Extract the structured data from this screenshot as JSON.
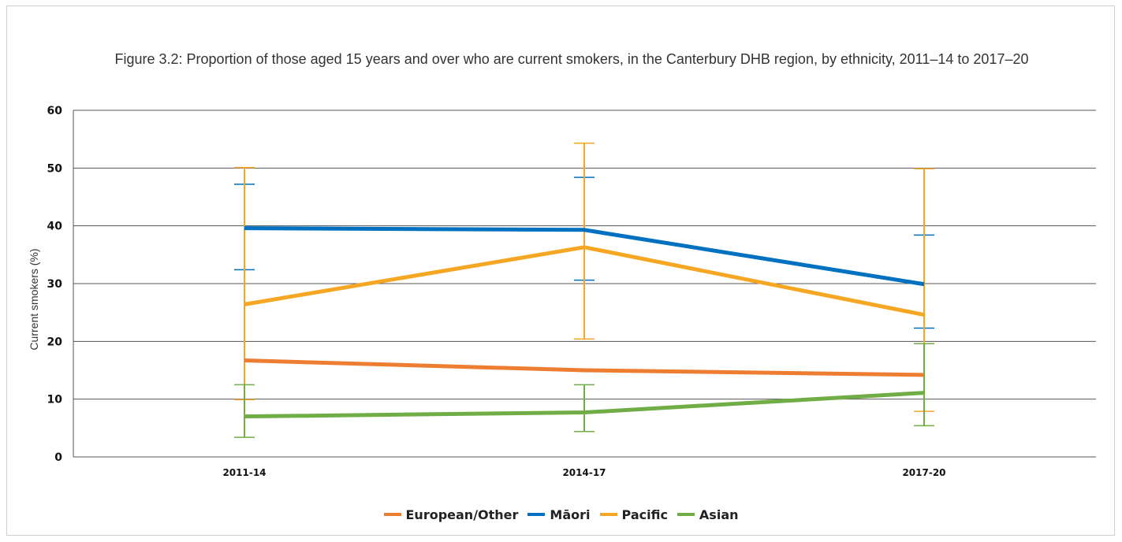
{
  "chart_data": {
    "type": "line",
    "title": "Figure 3.2: Proportion of those aged 15 years and over who are current smokers, in the Canterbury DHB region, by ethnicity, 2011–14 to 2017–20",
    "xlabel": "",
    "ylabel": "Current smokers (%)",
    "ylim": [
      0,
      60
    ],
    "yticks": [
      0,
      10,
      20,
      30,
      40,
      50,
      60
    ],
    "categories": [
      "2011-14",
      "2014-17",
      "2017-20"
    ],
    "grid": true,
    "legend_position": "bottom",
    "series": [
      {
        "name": "European/Other",
        "color": "#ed7d31",
        "values": [
          16.7,
          15.0,
          14.2
        ],
        "lower": [
          null,
          null,
          null
        ],
        "upper": [
          null,
          null,
          null
        ]
      },
      {
        "name": "Māori",
        "color": "#0070c0",
        "values": [
          39.6,
          39.3,
          29.9
        ],
        "lower": [
          32.4,
          30.6,
          22.3
        ],
        "upper": [
          47.2,
          48.4,
          38.4
        ]
      },
      {
        "name": "Pacific",
        "color": "#f5a623",
        "values": [
          26.4,
          36.3,
          24.6
        ],
        "lower": [
          9.9,
          20.4,
          7.9
        ],
        "upper": [
          50.1,
          54.3,
          49.9
        ]
      },
      {
        "name": "Asian",
        "color": "#70ad47",
        "values": [
          7.0,
          7.7,
          11.1
        ],
        "lower": [
          3.4,
          4.4,
          5.4
        ],
        "upper": [
          12.5,
          12.5,
          19.6
        ]
      }
    ]
  }
}
